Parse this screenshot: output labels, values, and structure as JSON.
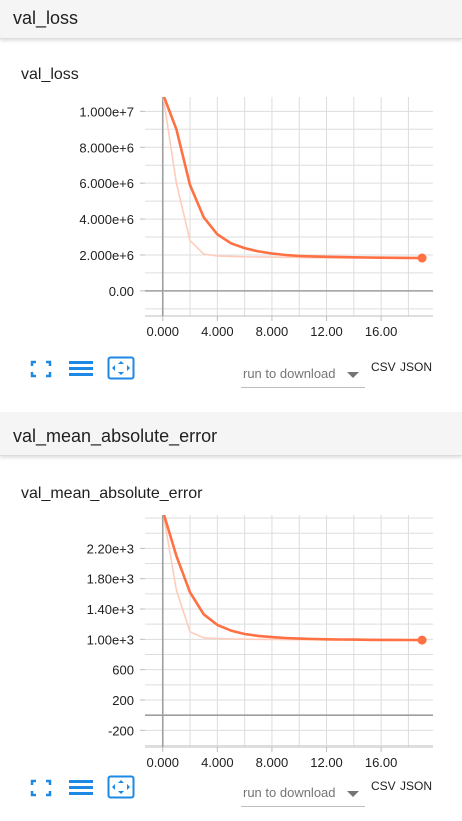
{
  "sections": [
    {
      "header": "val_loss",
      "card_title": "val_loss",
      "download": {
        "select_label": "run to download",
        "csv": "CSV",
        "json": "JSON"
      }
    },
    {
      "header": "val_mean_absolute_error",
      "card_title": "val_mean_absolute_error",
      "download": {
        "select_label": "run to download",
        "csv": "CSV",
        "json": "JSON"
      }
    }
  ],
  "toolbar": {
    "icons": [
      "fit-to-data-icon",
      "toggle-log-scale-icon",
      "expand-chart-icon"
    ],
    "icon_color": "#1e88e5"
  },
  "colors": {
    "smoothed": "#ff7043",
    "raw": "#ffccbc",
    "grid": "#dddddd",
    "axis": "#9e9e9e"
  },
  "chart_data": [
    {
      "type": "line",
      "title": "val_loss",
      "xlabel": "",
      "ylabel": "",
      "xlim": [
        -1.3,
        19.8
      ],
      "ylim": [
        -1400000,
        10800000
      ],
      "x_ticks": [
        0,
        4,
        8,
        12,
        16
      ],
      "x_tick_labels": [
        "0.000",
        "4.000",
        "8.000",
        "12.00",
        "16.00"
      ],
      "y_ticks": [
        0,
        2000000,
        4000000,
        6000000,
        8000000,
        10000000
      ],
      "y_tick_labels": [
        "0.00",
        "2.000e+6",
        "4.000e+6",
        "6.000e+6",
        "8.000e+6",
        "1.000e+7"
      ],
      "grid": true,
      "series": [
        {
          "role": "raw",
          "x": [
            0,
            1,
            2,
            3,
            4,
            5,
            6,
            7,
            8,
            9,
            10,
            11,
            12,
            13,
            14,
            15,
            16,
            17,
            18,
            19
          ],
          "values": [
            11000000,
            6000000,
            2800000,
            2050000,
            1950000,
            1920000,
            1900000,
            1890000,
            1880000,
            1870000,
            1860000,
            1850000,
            1850000,
            1840000,
            1840000,
            1830000,
            1830000,
            1830000,
            1820000,
            1820000
          ]
        },
        {
          "role": "smoothed",
          "x": [
            0,
            1,
            2,
            3,
            4,
            5,
            6,
            7,
            8,
            9,
            10,
            11,
            12,
            13,
            14,
            15,
            16,
            17,
            18,
            19
          ],
          "values": [
            11000000,
            9000000,
            5900000,
            4100000,
            3150000,
            2650000,
            2380000,
            2200000,
            2080000,
            2000000,
            1950000,
            1920000,
            1900000,
            1880000,
            1870000,
            1860000,
            1850000,
            1840000,
            1835000,
            1830000
          ]
        }
      ]
    },
    {
      "type": "line",
      "title": "val_mean_absolute_error",
      "xlabel": "",
      "ylabel": "",
      "xlim": [
        -1.3,
        19.8
      ],
      "ylim": [
        -420,
        2640
      ],
      "x_ticks": [
        0,
        4,
        8,
        12,
        16
      ],
      "x_tick_labels": [
        "0.000",
        "4.000",
        "8.000",
        "12.00",
        "16.00"
      ],
      "y_ticks": [
        -200,
        200,
        600,
        1000,
        1400,
        1800,
        2200
      ],
      "y_tick_labels": [
        "-200",
        "200",
        "600",
        "1.00e+3",
        "1.40e+3",
        "1.80e+3",
        "2.20e+3"
      ],
      "grid": true,
      "series": [
        {
          "role": "raw",
          "x": [
            0,
            1,
            2,
            3,
            4,
            5,
            6,
            7,
            8,
            9,
            10,
            11,
            12,
            13,
            14,
            15,
            16,
            17,
            18,
            19
          ],
          "values": [
            2700,
            1650,
            1100,
            1020,
            1010,
            1005,
            1002,
            1000,
            998,
            997,
            995,
            995,
            994,
            993,
            993,
            992,
            992,
            991,
            991,
            990
          ]
        },
        {
          "role": "smoothed",
          "x": [
            0,
            1,
            2,
            3,
            4,
            5,
            6,
            7,
            8,
            9,
            10,
            11,
            12,
            13,
            14,
            15,
            16,
            17,
            18,
            19
          ],
          "values": [
            2700,
            2100,
            1620,
            1330,
            1190,
            1115,
            1070,
            1045,
            1030,
            1018,
            1010,
            1005,
            1001,
            998,
            996,
            994,
            993,
            992,
            991,
            990
          ]
        }
      ]
    }
  ]
}
